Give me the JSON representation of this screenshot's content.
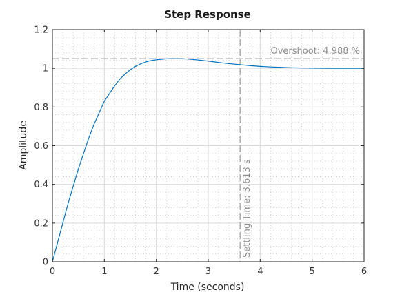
{
  "chart_data": {
    "type": "line",
    "title": "Step Response",
    "xlabel": "Time (seconds)",
    "ylabel": "Amplitude",
    "xlim": [
      0,
      6
    ],
    "ylim": [
      0,
      1.2
    ],
    "xticks": [
      "0",
      "1",
      "2",
      "3",
      "4",
      "5",
      "6"
    ],
    "yticks": [
      "0",
      "0.2",
      "0.4",
      "0.6",
      "0.8",
      "1",
      "1.2"
    ],
    "grid": true,
    "minor_grid": true,
    "series": [
      {
        "x": [
          0,
          0.1,
          0.2,
          0.3,
          0.4,
          0.5,
          0.6,
          0.7,
          0.8,
          0.9,
          1.0,
          1.1,
          1.2,
          1.3,
          1.4,
          1.5,
          1.6,
          1.7,
          1.8,
          1.9,
          2.0,
          2.2,
          2.4,
          2.6,
          2.8,
          3.0,
          3.2,
          3.4,
          3.6,
          3.8,
          4.0,
          4.2,
          4.4,
          4.6,
          4.8,
          5.0,
          5.3,
          5.6,
          6.0
        ],
        "y": [
          0,
          0.1,
          0.2,
          0.3,
          0.39,
          0.48,
          0.56,
          0.64,
          0.71,
          0.77,
          0.83,
          0.87,
          0.91,
          0.945,
          0.97,
          0.993,
          1.01,
          1.023,
          1.033,
          1.04,
          1.044,
          1.049,
          1.05,
          1.048,
          1.043,
          1.037,
          1.03,
          1.024,
          1.019,
          1.014,
          1.01,
          1.007,
          1.005,
          1.003,
          1.002,
          1.001,
          1.0,
          1.0,
          1.0
        ],
        "color": "#0072bd"
      }
    ],
    "overshoot": {
      "value": 1.05,
      "label": "Overshoot: 4.988 %"
    },
    "settling_time": {
      "value": 3.613,
      "label": "Settling Time: 3.613 s"
    },
    "colors": {
      "line": "#0072bd",
      "annotation": "#8c8c8c",
      "grid_major": "#d9d9d9",
      "grid_minor": "#c8c8c8",
      "axes": "#262626"
    }
  }
}
